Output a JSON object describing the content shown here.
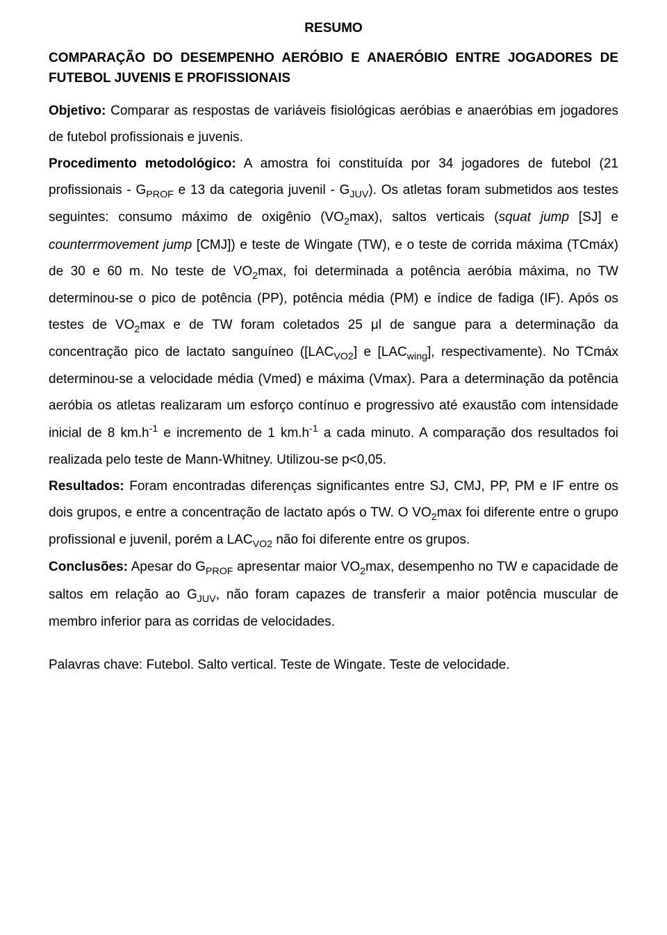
{
  "colors": {
    "text": "#000000",
    "background": "#ffffff"
  },
  "typography": {
    "font_family": "Arial, Helvetica, sans-serif",
    "body_fontsize": 19,
    "title_fontsize": 19,
    "line_height": 2.0
  },
  "title": "RESUMO",
  "subtitle": "COMPARAÇÃO DO DESEMPENHO AERÓBIO E ANAERÓBIO ENTRE JOGADORES DE FUTEBOL JUVENIS E PROFISSIONAIS",
  "sections": {
    "objetivo": {
      "label": "Objetivo:",
      "text": " Comparar as respostas de variáveis fisiológicas aeróbias e anaeróbias em jogadores de futebol profissionais e juvenis."
    },
    "procedimento": {
      "label": "Procedimento metodológico:",
      "t1": " A amostra foi constituída por 34 jogadores de futebol (21 profissionais - G",
      "t2": " e 13 da categoria juvenil - G",
      "t3": "). Os atletas foram submetidos aos testes seguintes: consumo máximo de oxigênio (VO",
      "t4": "max), saltos verticais (",
      "i1": "squat jump",
      "t5": " [SJ] e ",
      "i2": "counterrmovement jump",
      "t6": " [CMJ]) e teste de Wingate (TW), e o teste de corrida máxima (TCmáx) de 30 e 60 m. No teste de VO",
      "t7": "max, foi determinada a potência aeróbia máxima, no TW determinou-se o pico de potência (PP), potência média (PM) e índice de fadiga (IF). Após os testes de VO",
      "t8": "max e de TW foram coletados 25 μl de sangue para a determinação da concentração pico de lactato sanguíneo ([LAC",
      "t9": "] e [LAC",
      "t10": "], respectivamente). No TCmáx determinou-se a velocidade média (Vmed) e máxima (Vmax). Para a determinação da potência aeróbia os atletas realizaram um esforço contínuo e progressivo até exaustão com intensidade inicial de 8 km.h",
      "t11": " e incremento de 1 km.h",
      "t12": " a cada minuto. A comparação dos resultados foi realizada pelo teste de Mann-Whitney. Utilizou-se p<0,05.",
      "sub_prof": "PROF",
      "sub_juv": "JUV",
      "sub_2": "2",
      "sub_vo2": "VO2",
      "sub_wing": "wing",
      "sup_neg1": "-1"
    },
    "resultados": {
      "label": "Resultados:",
      "t1": " Foram encontradas diferenças significantes entre SJ, CMJ, PP, PM e IF entre os dois grupos, e entre a concentração de lactato após o TW. O VO",
      "t2": "max foi diferente entre o grupo profissional e juvenil, porém a LAC",
      "t3": " não foi diferente entre os grupos.",
      "sub_2": "2",
      "sub_vo2": "VO2"
    },
    "conclusoes": {
      "label": "Conclusões:",
      "t1": " Apesar do G",
      "t2": " apresentar maior VO",
      "t3": "max, desempenho no TW e capacidade de saltos em relação ao G",
      "t4": ", não foram capazes de transferir a maior potência muscular de membro inferior para as corridas de velocidades.",
      "sub_prof": "PROF",
      "sub_2": "2",
      "sub_juv": "JUV"
    }
  },
  "keywords": {
    "label": "Palavras chave:",
    "text": " Futebol. Salto vertical. Teste de Wingate. Teste de velocidade."
  }
}
